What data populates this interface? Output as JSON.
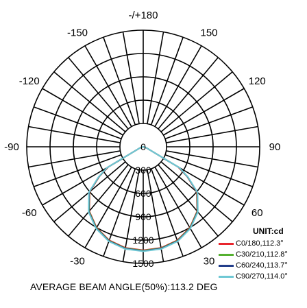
{
  "chart_data": {
    "type": "polar",
    "title": "",
    "radial_ticks": [
      "0",
      "300",
      "600",
      "900",
      "1200",
      "1500"
    ],
    "rmax": 1500,
    "rings": [
      300,
      600,
      900,
      1200,
      1500
    ],
    "angle_labels": [
      {
        "angle": 180,
        "text": "-/+180"
      },
      {
        "angle": 150,
        "text": "150"
      },
      {
        "angle": -150,
        "text": "-150"
      },
      {
        "angle": 120,
        "text": "120"
      },
      {
        "angle": -120,
        "text": "-120"
      },
      {
        "angle": 90,
        "text": "90"
      },
      {
        "angle": -90,
        "text": "-90"
      },
      {
        "angle": 60,
        "text": "60"
      },
      {
        "angle": -60,
        "text": "-60"
      },
      {
        "angle": 30,
        "text": "30"
      },
      {
        "angle": -30,
        "text": "-30"
      },
      {
        "angle": 0,
        "text": "0"
      }
    ],
    "unit": "UNIT:cd",
    "series": [
      {
        "name": "C0/180,112.3°",
        "color": "#e8262d",
        "angles": [
          -90,
          -80,
          -70,
          -60,
          -56,
          -50,
          -40,
          -30,
          -20,
          -10,
          0,
          10,
          20,
          30,
          40,
          50,
          56,
          60,
          70,
          80,
          90
        ],
        "values": [
          0,
          5,
          45,
          520,
          680,
          900,
          1080,
          1200,
          1280,
          1320,
          1330,
          1320,
          1280,
          1200,
          1080,
          900,
          680,
          520,
          45,
          5,
          0
        ]
      },
      {
        "name": "C30/210,112.8°",
        "color": "#55b030",
        "angles": [
          -90,
          -80,
          -70,
          -60,
          -56,
          -50,
          -40,
          -30,
          -20,
          -10,
          0,
          10,
          20,
          30,
          40,
          50,
          56,
          60,
          70,
          80,
          90
        ],
        "values": [
          0,
          5,
          45,
          530,
          685,
          905,
          1085,
          1205,
          1285,
          1325,
          1335,
          1325,
          1285,
          1205,
          1085,
          905,
          685,
          530,
          45,
          5,
          0
        ]
      },
      {
        "name": "C60/240,113.7°",
        "color": "#233e8b",
        "angles": [
          -90,
          -80,
          -70,
          -60,
          -56,
          -50,
          -40,
          -30,
          -20,
          -10,
          0,
          10,
          20,
          30,
          40,
          50,
          56,
          60,
          70,
          80,
          90
        ],
        "values": [
          0,
          5,
          45,
          535,
          690,
          910,
          1090,
          1210,
          1290,
          1330,
          1340,
          1330,
          1290,
          1210,
          1090,
          910,
          690,
          535,
          45,
          5,
          0
        ]
      },
      {
        "name": "C90/270,114.0°",
        "color": "#6fc8d4",
        "angles": [
          -90,
          -80,
          -70,
          -60,
          -56,
          -50,
          -40,
          -30,
          -20,
          -10,
          0,
          10,
          20,
          30,
          40,
          50,
          56,
          60,
          70,
          80,
          90
        ],
        "values": [
          0,
          5,
          45,
          540,
          695,
          915,
          1095,
          1215,
          1295,
          1335,
          1345,
          1335,
          1295,
          1215,
          1095,
          915,
          695,
          540,
          45,
          5,
          0
        ]
      }
    ],
    "footer": "AVERAGE BEAM ANGLE(50%):113.2 DEG"
  }
}
